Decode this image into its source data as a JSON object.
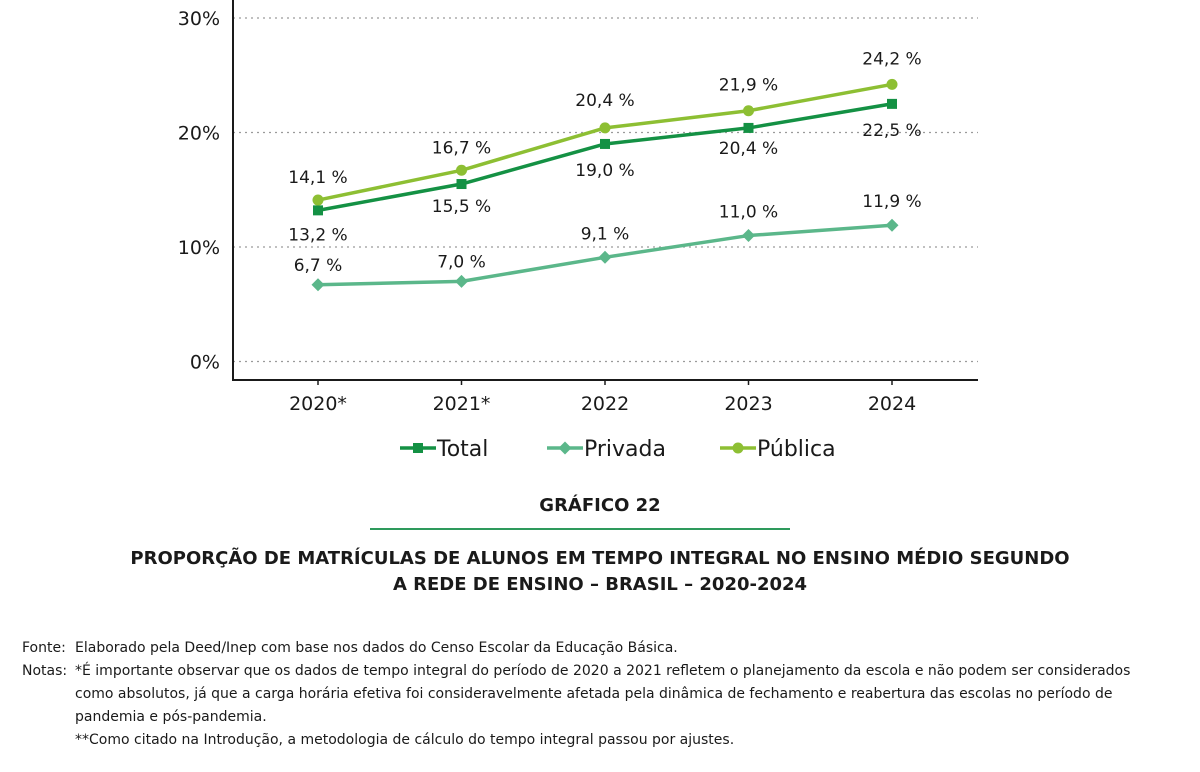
{
  "chart_data": {
    "type": "line",
    "categories": [
      "2020*",
      "2021*",
      "2022",
      "2023",
      "2024"
    ],
    "ylim": [
      0,
      30
    ],
    "yticks": [
      "0%",
      "10%",
      "20%",
      "30%"
    ],
    "grid": true,
    "legend_position": "bottom",
    "series": [
      {
        "name": "Total",
        "color": "#149144",
        "marker": "square",
        "values": [
          13.2,
          15.5,
          19.0,
          20.4,
          22.5
        ],
        "labels": [
          "13,2 %",
          "15,5 %",
          "19,0 %",
          "20,4 %",
          "22,5 %"
        ]
      },
      {
        "name": "Privada",
        "color": "#5bb78a",
        "marker": "diamond",
        "values": [
          6.7,
          7.0,
          9.1,
          11.0,
          11.9
        ],
        "labels": [
          "6,7 %",
          "7,0 %",
          "9,1 %",
          "11,0 %",
          "11,9 %"
        ]
      },
      {
        "name": "Pública",
        "color": "#8dbf33",
        "marker": "circle",
        "values": [
          14.1,
          16.7,
          20.4,
          21.9,
          24.2
        ],
        "labels": [
          "14,1 %",
          "16,7 %",
          "20,4 %",
          "21,9 %",
          "24,2 %"
        ]
      }
    ]
  },
  "caption": {
    "number": "GRÁFICO 22",
    "title_lines": [
      "PROPORÇÃO DE MATRÍCULAS DE ALUNOS EM TEMPO INTEGRAL NO ENSINO MÉDIO SEGUNDO",
      "A REDE DE ENSINO – BRASIL – 2020-2024"
    ]
  },
  "notes": {
    "source_label": "Fonte:",
    "source_text": "Elaborado pela Deed/Inep com base nos dados do Censo Escolar da Educação Básica.",
    "notes_label": "Notas:",
    "note_lines": [
      "*É importante observar que os dados de tempo integral do período de 2020 a 2021 refletem o planejamento da escola e não podem ser considerados",
      "como absolutos, já que a carga horária efetiva foi consideravelmente afetada pela dinâmica de fechamento e reabertura das escolas no período de",
      "pandemia e pós-pandemia.",
      "**Como citado na Introdução, a metodologia de cálculo do tempo integral passou por ajustes."
    ]
  }
}
